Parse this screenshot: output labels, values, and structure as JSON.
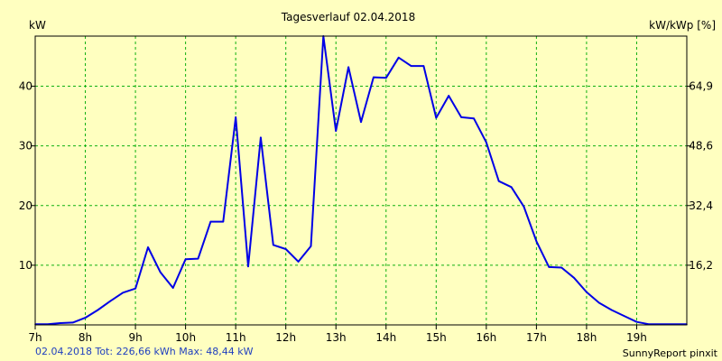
{
  "chart_data": {
    "type": "line",
    "title": "Tagesverlauf 02.04.2018",
    "ylabel_left": "kW",
    "ylabel_right": "kW/kWp [%]",
    "x_categories": [
      "7h",
      "8h",
      "9h",
      "10h",
      "11h",
      "12h",
      "13h",
      "14h",
      "15h",
      "16h",
      "17h",
      "18h",
      "19h"
    ],
    "y_ticks_left": [
      10,
      20,
      30,
      40
    ],
    "y_ticks_right": [
      "16,2",
      "32,4",
      "48,6",
      "64,9"
    ],
    "xlim": [
      7,
      20
    ],
    "ylim": [
      0,
      48.4
    ],
    "grid": true,
    "line_color": "#0000e6",
    "grid_color": "#10b010",
    "footer_left": "02.04.2018 Tot: 226,66 kWh Max: 48,44 kW",
    "footer_right": "SunnyReport pinxit",
    "series": [
      {
        "x": [
          7.0,
          7.25,
          7.5,
          7.75,
          8.0,
          8.25,
          8.5,
          8.75,
          9.0,
          9.25,
          9.5,
          9.75,
          10.0,
          10.25,
          10.5,
          10.75,
          11.0,
          11.25,
          11.5,
          11.75,
          12.0,
          12.25,
          12.5,
          12.75,
          13.0,
          13.25,
          13.5,
          13.75,
          14.0,
          14.25,
          14.5,
          14.75,
          15.0,
          15.25,
          15.5,
          15.75,
          16.0,
          16.25,
          16.5,
          16.75,
          17.0,
          17.25,
          17.5,
          17.75,
          18.0,
          18.25,
          18.5,
          18.75,
          19.0,
          19.25,
          19.5,
          19.75,
          20.0
        ],
        "y": [
          0.1,
          0.1,
          0.3,
          0.4,
          1.2,
          2.5,
          4.0,
          5.4,
          6.1,
          13.0,
          8.8,
          6.2,
          11.0,
          11.1,
          17.3,
          17.3,
          34.8,
          9.8,
          31.4,
          13.4,
          12.7,
          10.6,
          13.2,
          48.4,
          32.5,
          43.2,
          34.0,
          41.5,
          41.4,
          44.8,
          43.4,
          43.4,
          34.7,
          38.4,
          34.8,
          34.6,
          30.6,
          24.1,
          23.1,
          19.8,
          14.0,
          9.7,
          9.6,
          7.9,
          5.5,
          3.7,
          2.5,
          1.5,
          0.5,
          0.1,
          0.1,
          0.1,
          0.1
        ]
      }
    ]
  }
}
